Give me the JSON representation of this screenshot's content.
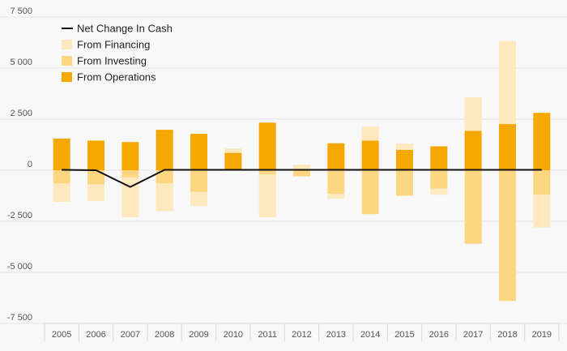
{
  "chart_data": {
    "type": "bar",
    "categories": [
      "2005",
      "2006",
      "2007",
      "2008",
      "2009",
      "2010",
      "2011",
      "2012",
      "2013",
      "2014",
      "2015",
      "2016",
      "2017",
      "2018",
      "2019"
    ],
    "series": [
      {
        "name": "From Operations",
        "color": "#f5a800",
        "values": [
          1550,
          1450,
          1380,
          1980,
          1780,
          850,
          2330,
          0,
          1320,
          1450,
          1000,
          1170,
          1930,
          2260,
          2810
        ]
      },
      {
        "name": "From Investing",
        "color": "#fcd680",
        "values": [
          -650,
          -700,
          -350,
          -650,
          -1050,
          0,
          -200,
          -300,
          -1150,
          -2150,
          -1250,
          -900,
          -3600,
          -6400,
          -1200
        ]
      },
      {
        "name": "From Financing",
        "color": "#fde9bd",
        "values": [
          -900,
          -800,
          -1950,
          -1350,
          -700,
          220,
          -2100,
          270,
          -250,
          680,
          300,
          -300,
          1640,
          4070,
          -1600
        ]
      },
      {
        "name": "Net Change In Cash",
        "color": "#111111",
        "values": [
          20,
          0,
          -820,
          20,
          20,
          20,
          20,
          20,
          20,
          20,
          20,
          20,
          20,
          20,
          20
        ]
      }
    ],
    "ylim": [
      -7500,
      7500
    ],
    "yticks": [
      7500,
      5000,
      2500,
      0,
      -2500,
      -5000,
      -7500
    ],
    "ytick_labels": [
      "7 500",
      "5 000",
      "2 500",
      "0",
      "-2 500",
      "-5 000",
      "-7 500"
    ],
    "grid": true,
    "legend_position": "top-left",
    "legend": [
      {
        "label": "Net Change In Cash",
        "kind": "line",
        "color": "#111111"
      },
      {
        "label": "From Financing",
        "kind": "box",
        "color": "#fde9bd"
      },
      {
        "label": "From Investing",
        "kind": "box",
        "color": "#fcd680"
      },
      {
        "label": "From Operations",
        "kind": "box",
        "color": "#f5a800"
      }
    ],
    "title": "",
    "xlabel": "",
    "ylabel": ""
  }
}
